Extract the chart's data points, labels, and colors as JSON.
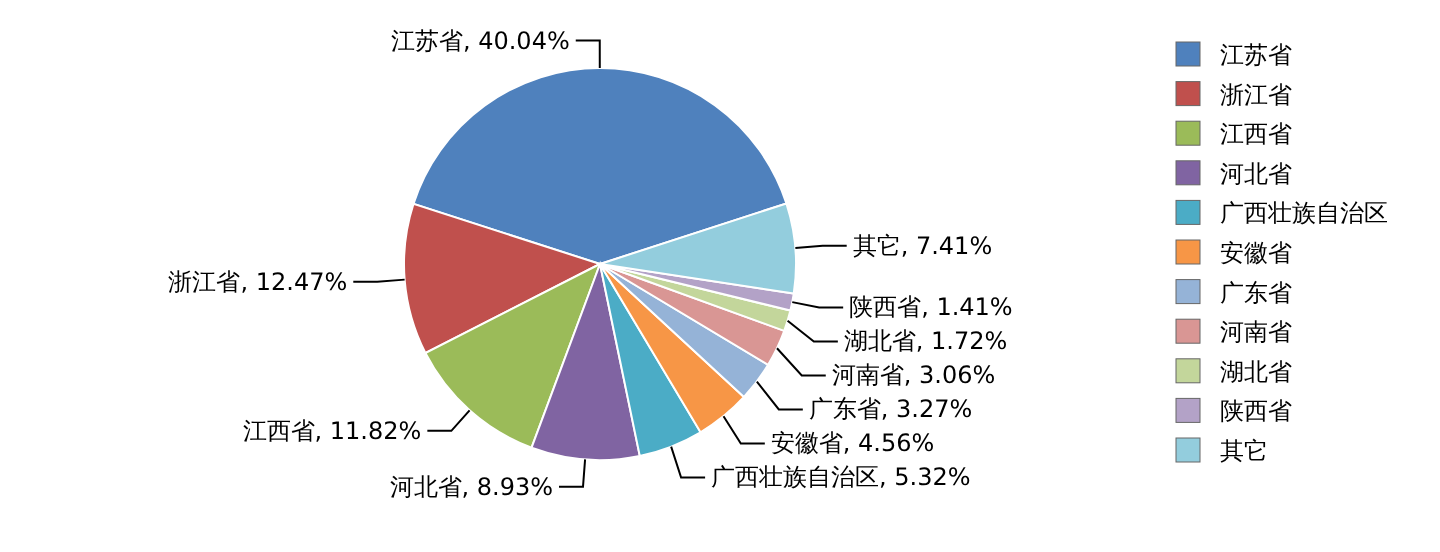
{
  "chart_data": {
    "type": "pie",
    "categories": [
      "江苏省",
      "浙江省",
      "江西省",
      "河北省",
      "广西壮族自治区",
      "安徽省",
      "广东省",
      "河南省",
      "湖北省",
      "陕西省",
      "其它"
    ],
    "values": [
      40.04,
      12.47,
      11.82,
      8.93,
      5.32,
      4.56,
      3.27,
      3.06,
      1.72,
      1.41,
      7.41
    ],
    "colors": [
      "#4f81bd",
      "#c0504d",
      "#9bbb59",
      "#8064a2",
      "#4bacc6",
      "#f79646",
      "#95b3d7",
      "#d99694",
      "#c3d69b",
      "#b3a2c7",
      "#93cddd"
    ],
    "value_labels": [
      "江苏省, 40.04%",
      "浙江省, 12.47%",
      "江西省, 11.82%",
      "河北省, 8.93%",
      "广西壮族自治区, 5.32%",
      "安徽省, 4.56%",
      "广东省, 3.27%",
      "河南省, 3.06%",
      "湖北省, 1.72%",
      "陕西省, 1.41%",
      "其它, 7.41%"
    ],
    "legend": "right"
  }
}
